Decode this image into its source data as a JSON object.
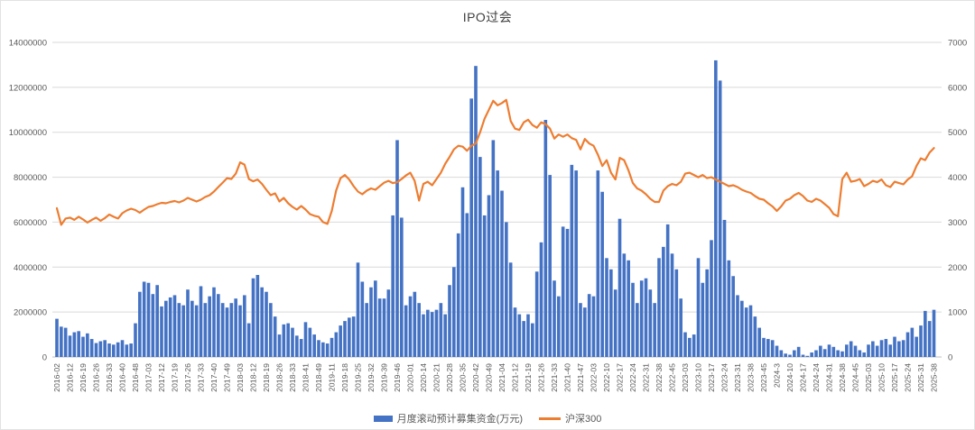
{
  "title": "IPO过会",
  "legend": [
    {
      "label": "月度滚动预计募集资金(万元)",
      "type": "bar",
      "color": "#4472C4"
    },
    {
      "label": "沪深300",
      "type": "line",
      "color": "#ED7D31"
    }
  ],
  "chart_data": {
    "type": "combo",
    "title": "IPO过会",
    "grid": true,
    "legend_position": "bottom",
    "axis_left": {
      "min": 0,
      "max": 14000000,
      "step": 2000000,
      "ticks": [
        "0",
        "2000000",
        "4000000",
        "6000000",
        "8000000",
        "10000000",
        "12000000",
        "14000000"
      ]
    },
    "axis_right": {
      "min": 0,
      "max": 7000,
      "step": 1000,
      "ticks": [
        "0",
        "1000",
        "2000",
        "3000",
        "4000",
        "5000",
        "6000",
        "7000"
      ]
    },
    "x_labels": [
      "2016-02",
      "2016-12",
      "2016-19",
      "2016-26",
      "2016-33",
      "2016-40",
      "2016-48",
      "2017-03",
      "2017-12",
      "2017-19",
      "2017-26",
      "2017-33",
      "2017-40",
      "2017-49",
      "2018-03",
      "2018-12",
      "2018-19",
      "2018-26",
      "2018-33",
      "2018-41",
      "2018-49",
      "2019-11",
      "2019-18",
      "2019-25",
      "2019-32",
      "2019-39",
      "2019-46",
      "2020-01",
      "2020-14",
      "2020-21",
      "2020-28",
      "2020-35",
      "2020-42",
      "2020-49",
      "2021-04",
      "2021-12",
      "2021-19",
      "2021-26",
      "2021-33",
      "2021-40",
      "2021-47",
      "2022-03",
      "2022-10",
      "2022-17",
      "2022-24",
      "2022-31",
      "2022-38",
      "2022-45",
      "2023-03",
      "2023-10",
      "2023-17",
      "2023-24",
      "2023-31",
      "2023-38",
      "2023-45",
      "2024-3",
      "2024-10",
      "2024-17",
      "2024-24",
      "2024-31",
      "2024-38",
      "2024-45",
      "2025-03",
      "2025-10",
      "2025-17",
      "2025-24",
      "2025-31",
      "2025-38"
    ],
    "points_per_label": 3,
    "series": [
      {
        "name": "月度滚动预计募集资金(万元)",
        "type": "bar",
        "axis": "left",
        "color": "#4472C4",
        "values": [
          1700000,
          1350000,
          1300000,
          950000,
          1100000,
          1150000,
          900000,
          1050000,
          800000,
          620000,
          700000,
          750000,
          600000,
          550000,
          650000,
          750000,
          550000,
          600000,
          1500000,
          2900000,
          3350000,
          3300000,
          2800000,
          3200000,
          2250000,
          2500000,
          2650000,
          2750000,
          2400000,
          2300000,
          3000000,
          2500000,
          2300000,
          3150000,
          2400000,
          2700000,
          3100000,
          2800000,
          2400000,
          2200000,
          2400000,
          2600000,
          2300000,
          2750000,
          1500000,
          3500000,
          3650000,
          3100000,
          2900000,
          2400000,
          1800000,
          1000000,
          1450000,
          1500000,
          1300000,
          950000,
          800000,
          1550000,
          1300000,
          1000000,
          750000,
          650000,
          600000,
          850000,
          1100000,
          1400000,
          1600000,
          1750000,
          1800000,
          4200000,
          3350000,
          2400000,
          3100000,
          3400000,
          2600000,
          2600000,
          3000000,
          6300000,
          9650000,
          6200000,
          2300000,
          2700000,
          2900000,
          2400000,
          1900000,
          2100000,
          2000000,
          2100000,
          2400000,
          1900000,
          3200000,
          4000000,
          5500000,
          7550000,
          6400000,
          11500000,
          12950000,
          8900000,
          6300000,
          7200000,
          9650000,
          8300000,
          7400000,
          6000000,
          4200000,
          2200000,
          1900000,
          1600000,
          1900000,
          1500000,
          3800000,
          5100000,
          10550000,
          8100000,
          3400000,
          2700000,
          5800000,
          5700000,
          8550000,
          8300000,
          2400000,
          2200000,
          2800000,
          2700000,
          8300000,
          7350000,
          4400000,
          3900000,
          3000000,
          6150000,
          4600000,
          4300000,
          3300000,
          2400000,
          3400000,
          3500000,
          3000000,
          2400000,
          4400000,
          4900000,
          5900000,
          4600000,
          3900000,
          2600000,
          1100000,
          850000,
          1000000,
          4400000,
          3300000,
          3900000,
          5200000,
          13200000,
          12300000,
          6100000,
          4300000,
          3600000,
          2750000,
          2500000,
          2200000,
          2300000,
          1800000,
          1300000,
          850000,
          800000,
          750000,
          500000,
          300000,
          150000,
          100000,
          300000,
          450000,
          100000,
          50000,
          200000,
          300000,
          500000,
          350000,
          550000,
          450000,
          300000,
          250000,
          550000,
          700000,
          500000,
          300000,
          200000,
          550000,
          700000,
          500000,
          750000,
          800000,
          550000,
          900000,
          700000,
          750000,
          1100000,
          1300000,
          900000,
          1400000,
          2050000,
          1600000,
          2100000
        ]
      },
      {
        "name": "沪深300",
        "type": "line",
        "axis": "right",
        "color": "#ED7D31",
        "values": [
          3310,
          2940,
          3080,
          3100,
          3050,
          3120,
          3060,
          2990,
          3050,
          3100,
          3030,
          3090,
          3170,
          3120,
          3080,
          3200,
          3260,
          3300,
          3270,
          3210,
          3280,
          3340,
          3360,
          3400,
          3430,
          3420,
          3450,
          3470,
          3440,
          3480,
          3540,
          3500,
          3460,
          3500,
          3560,
          3600,
          3680,
          3780,
          3880,
          3980,
          3960,
          4080,
          4330,
          4280,
          3960,
          3910,
          3950,
          3850,
          3720,
          3600,
          3640,
          3460,
          3540,
          3420,
          3340,
          3280,
          3360,
          3280,
          3180,
          3140,
          3120,
          3000,
          2960,
          3250,
          3700,
          3980,
          4050,
          3950,
          3800,
          3680,
          3620,
          3700,
          3750,
          3720,
          3800,
          3880,
          3920,
          3870,
          3890,
          3960,
          4040,
          4100,
          3920,
          3480,
          3850,
          3900,
          3820,
          3960,
          4100,
          4300,
          4450,
          4620,
          4700,
          4680,
          4590,
          4700,
          4750,
          5000,
          5300,
          5500,
          5700,
          5600,
          5650,
          5720,
          5250,
          5080,
          5050,
          5220,
          5280,
          5160,
          5100,
          5220,
          5180,
          5080,
          4860,
          4950,
          4900,
          4950,
          4870,
          4830,
          4620,
          4850,
          4750,
          4700,
          4500,
          4250,
          4380,
          4100,
          3950,
          4430,
          4380,
          4150,
          3870,
          3750,
          3700,
          3620,
          3520,
          3450,
          3450,
          3700,
          3800,
          3850,
          3820,
          3900,
          4080,
          4100,
          4050,
          4000,
          4050,
          3980,
          4000,
          3950,
          3900,
          3850,
          3800,
          3820,
          3780,
          3720,
          3680,
          3650,
          3580,
          3520,
          3500,
          3420,
          3350,
          3250,
          3350,
          3480,
          3520,
          3600,
          3650,
          3580,
          3480,
          3450,
          3520,
          3480,
          3400,
          3320,
          3180,
          3130,
          3960,
          4100,
          3900,
          3920,
          3960,
          3800,
          3850,
          3920,
          3890,
          3950,
          3820,
          3780,
          3900,
          3870,
          3840,
          3950,
          4020,
          4250,
          4420,
          4380,
          4550,
          4650
        ]
      }
    ]
  },
  "colors": {
    "bar": "#4472C4",
    "line": "#ED7D31",
    "gridline": "#d9d9d9",
    "axis_text": "#595959",
    "title_text": "#404040"
  }
}
